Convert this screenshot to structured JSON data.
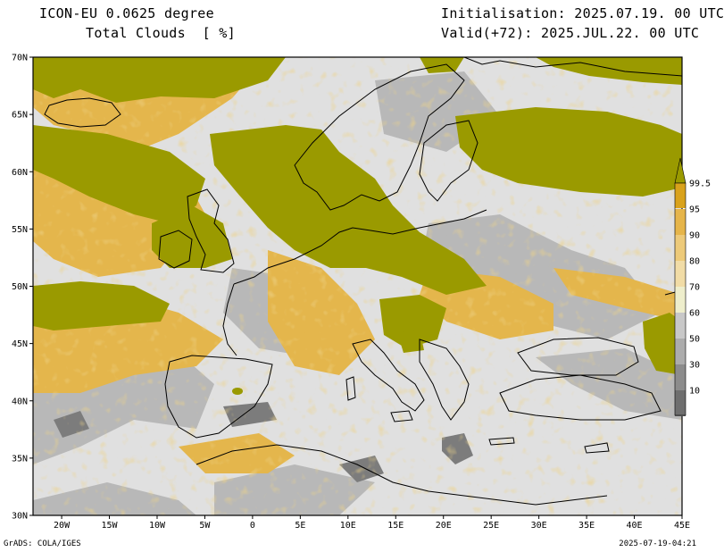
{
  "header": {
    "model": "ICON-EU 0.0625 degree",
    "field": "Total Clouds  [ %]",
    "initialisation": "Initialisation: 2025.07.19. 00 UTC",
    "valid": "Valid(+72): 2025.JUL.22. 00 UTC"
  },
  "map": {
    "lon_range": [
      -23,
      45
    ],
    "lat_range": [
      30,
      70
    ],
    "lon_ticks": [
      "20W",
      "15W",
      "10W",
      "5W",
      "0",
      "5E",
      "10E",
      "15E",
      "20E",
      "25E",
      "30E",
      "35E",
      "40E",
      "45E"
    ],
    "lon_tick_values": [
      -20,
      -15,
      -10,
      -5,
      0,
      5,
      10,
      15,
      20,
      25,
      30,
      35,
      40,
      45
    ],
    "lat_ticks": [
      "30N",
      "35N",
      "40N",
      "45N",
      "50N",
      "55N",
      "60N",
      "65N",
      "70N"
    ],
    "lat_tick_values": [
      30,
      35,
      40,
      45,
      50,
      55,
      60,
      65,
      70
    ],
    "colors": {
      "clear": "#e0e0e0",
      "overcast": "#9a9a00",
      "coast": "#000000"
    }
  },
  "legend": {
    "levels": [
      "99.5",
      "95",
      "90",
      "80",
      "70",
      "60",
      "50",
      "30",
      "10"
    ],
    "colors": [
      "#d9a21c",
      "#e6b54a",
      "#edca7a",
      "#f1dca6",
      "#eeeecc",
      "#c8c8c8",
      "#acacac",
      "#8c8c8c",
      "#6e6e6e"
    ],
    "top_color": "#9a9a00"
  },
  "footer": {
    "credit": "GrADS: COLA/IGES",
    "timestamp": "2025-07-19-04:21"
  }
}
